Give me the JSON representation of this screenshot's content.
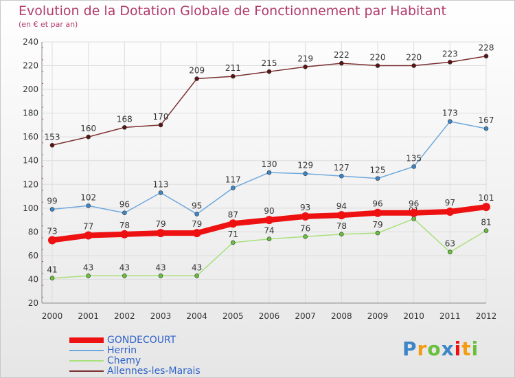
{
  "chart_data": {
    "type": "line",
    "title": "Evolution de la Dotation Globale de Fonctionnement par Habitant",
    "subtitle": "(en € et par an)",
    "xlabel": "",
    "ylabel": "",
    "categories": [
      "2000",
      "2001",
      "2002",
      "2003",
      "2004",
      "2005",
      "2006",
      "2007",
      "2008",
      "2009",
      "2010",
      "2011",
      "2012"
    ],
    "ylim": [
      20,
      240
    ],
    "yticks": [
      20,
      40,
      60,
      80,
      100,
      120,
      140,
      160,
      180,
      200,
      220,
      240
    ],
    "grid": true,
    "legend_position": "bottom-left",
    "series": [
      {
        "name": "Allennes-les-Marais",
        "color": "#7a2e2e",
        "marker": "#5a1414",
        "values": [
          153,
          160,
          168,
          170,
          209,
          211,
          215,
          219,
          222,
          220,
          220,
          223,
          228
        ]
      },
      {
        "name": "Herrin",
        "color": "#6fa8dc",
        "marker": "#3d85c6",
        "values": [
          99,
          102,
          96,
          113,
          95,
          117,
          130,
          129,
          127,
          125,
          135,
          173,
          167
        ]
      },
      {
        "name": "Chemy",
        "color": "#a8e07a",
        "marker": "#6abf3c",
        "values": [
          41,
          43,
          43,
          43,
          43,
          71,
          74,
          76,
          78,
          79,
          91,
          63,
          81
        ]
      },
      {
        "name": "GONDECOURT",
        "color": "#ee1111",
        "marker": "#ee1111",
        "values": [
          73,
          77,
          78,
          79,
          79,
          87,
          90,
          93,
          94,
          96,
          96,
          97,
          101
        ]
      }
    ],
    "legend_order": [
      "GONDECOURT",
      "Herrin",
      "Chemy",
      "Allennes-les-Marais"
    ]
  },
  "branding": {
    "letters": [
      "P",
      "r",
      "o",
      "x",
      "i",
      "t",
      "i"
    ],
    "colors": [
      "#3d85c6",
      "#f39c12",
      "#6abf3c",
      "#3d85c6",
      "#ee1111",
      "#f39c12",
      "#6abf3c"
    ]
  }
}
